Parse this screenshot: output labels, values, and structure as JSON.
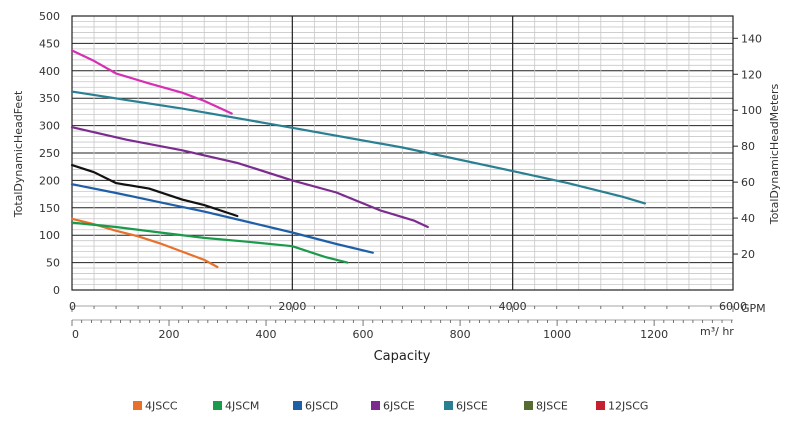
{
  "chart_data": {
    "type": "line",
    "xlabel": "Capacity",
    "ylabel_left": "TotalDynamicHeadFeet",
    "ylabel_right": "TotalDynamicHeadMeters",
    "gpm_unit": "GPM",
    "m3hr_unit": "m³/ hr",
    "ylim_feet": [
      0,
      500
    ],
    "ylim_meters": [
      0,
      152.4
    ],
    "xlim_gpm": [
      0,
      6000
    ],
    "y_ticks_feet": [
      "0",
      "50",
      "100",
      "150",
      "200",
      "250",
      "300",
      "350",
      "400",
      "450",
      "500"
    ],
    "y_ticks_meters": [
      "20",
      "40",
      "60",
      "80",
      "100",
      "120",
      "140"
    ],
    "x_ticks_gpm": [
      "0",
      "2000",
      "4000",
      "6000"
    ],
    "x_ticks_m3hr": [
      "0",
      "200",
      "400",
      "600",
      "800",
      "1000",
      "1200"
    ],
    "grid": true,
    "legend_position": "bottom",
    "series": [
      {
        "name": "4JSCC",
        "color": "#e8702a",
        "x": [
          0,
          200,
          400,
          600,
          800,
          1000,
          1200,
          1320
        ],
        "y": [
          130,
          120,
          108,
          98,
          85,
          70,
          55,
          42
        ]
      },
      {
        "name": "4JSCM",
        "color": "#1a9a4a",
        "x": [
          0,
          400,
          800,
          1200,
          1600,
          2000,
          2300,
          2500
        ],
        "y": [
          123,
          115,
          105,
          95,
          88,
          80,
          60,
          50
        ]
      },
      {
        "name": "6JSCD",
        "color": "#1f5fa8",
        "x": [
          0,
          400,
          800,
          1200,
          1600,
          2000,
          2400,
          2730
        ],
        "y": [
          193,
          177,
          160,
          143,
          124,
          105,
          84,
          68
        ]
      },
      {
        "name": "6JSCE",
        "color": "#7b2c8e",
        "x": [
          0,
          500,
          1000,
          1500,
          2000,
          2400,
          2800,
          3100,
          3230
        ],
        "y": [
          297,
          274,
          255,
          232,
          200,
          178,
          145,
          127,
          115
        ]
      },
      {
        "name": "6JSCE",
        "color": "#2a8092",
        "x": [
          0,
          1000,
          2000,
          3000,
          4000,
          4500,
          5000,
          5200
        ],
        "y": [
          362,
          331,
          296,
          260,
          217,
          195,
          170,
          158
        ]
      },
      {
        "name": "8JSCE",
        "color": "#556b2f",
        "x": [],
        "y": []
      },
      {
        "name": "12JSCG",
        "color": "#c42030",
        "x": [],
        "y": []
      },
      {
        "name": "",
        "color": "#d62fb4",
        "x": [
          0,
          200,
          400,
          700,
          1000,
          1200,
          1450
        ],
        "y": [
          437,
          418,
          395,
          377,
          360,
          345,
          322
        ]
      },
      {
        "name": "",
        "color": "#111111",
        "x": [
          0,
          200,
          400,
          700,
          1000,
          1200,
          1500
        ],
        "y": [
          228,
          215,
          195,
          185,
          165,
          155,
          135
        ]
      }
    ]
  }
}
